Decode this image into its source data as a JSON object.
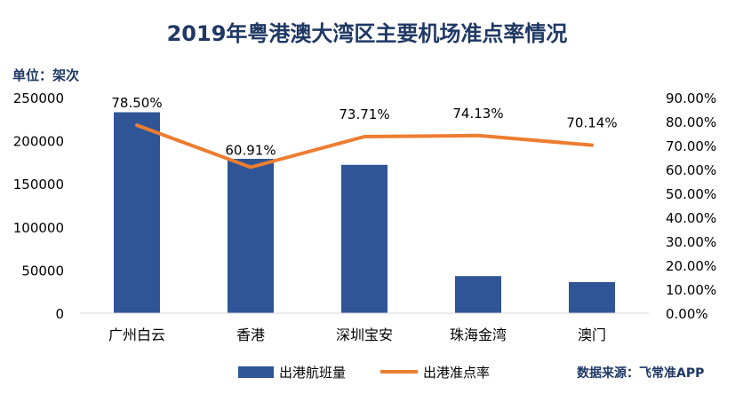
{
  "colors": {
    "bar": "#2f5597",
    "line": "#ed7d31",
    "title": "#1f3864"
  },
  "chart_data": {
    "type": "bar",
    "title": "2019年粤港澳大湾区主要机场准点率情况",
    "unit_label": "单位：架次",
    "source": "数据来源：飞常准APP",
    "categories": [
      "广州白云",
      "香港",
      "深圳宝安",
      "珠海金湾",
      "澳门"
    ],
    "series": [
      {
        "name": "出港航班量",
        "type": "bar",
        "axis": "left",
        "values": [
          233000,
          179000,
          172000,
          43000,
          36000
        ]
      },
      {
        "name": "出港准点率",
        "type": "line",
        "axis": "right",
        "values": [
          78.5,
          60.91,
          73.71,
          74.13,
          70.14
        ],
        "labels": [
          "78.50%",
          "60.91%",
          "73.71%",
          "74.13%",
          "70.14%"
        ]
      }
    ],
    "y_left": {
      "ylim": [
        0,
        250000
      ],
      "ticks": [
        "0",
        "50000",
        "100000",
        "150000",
        "200000",
        "250000"
      ]
    },
    "y_right": {
      "ylim": [
        0,
        90
      ],
      "ticks": [
        "0.00%",
        "10.00%",
        "20.00%",
        "30.00%",
        "40.00%",
        "50.00%",
        "60.00%",
        "70.00%",
        "80.00%",
        "90.00%"
      ]
    },
    "grid": false,
    "legend": "bottom"
  }
}
